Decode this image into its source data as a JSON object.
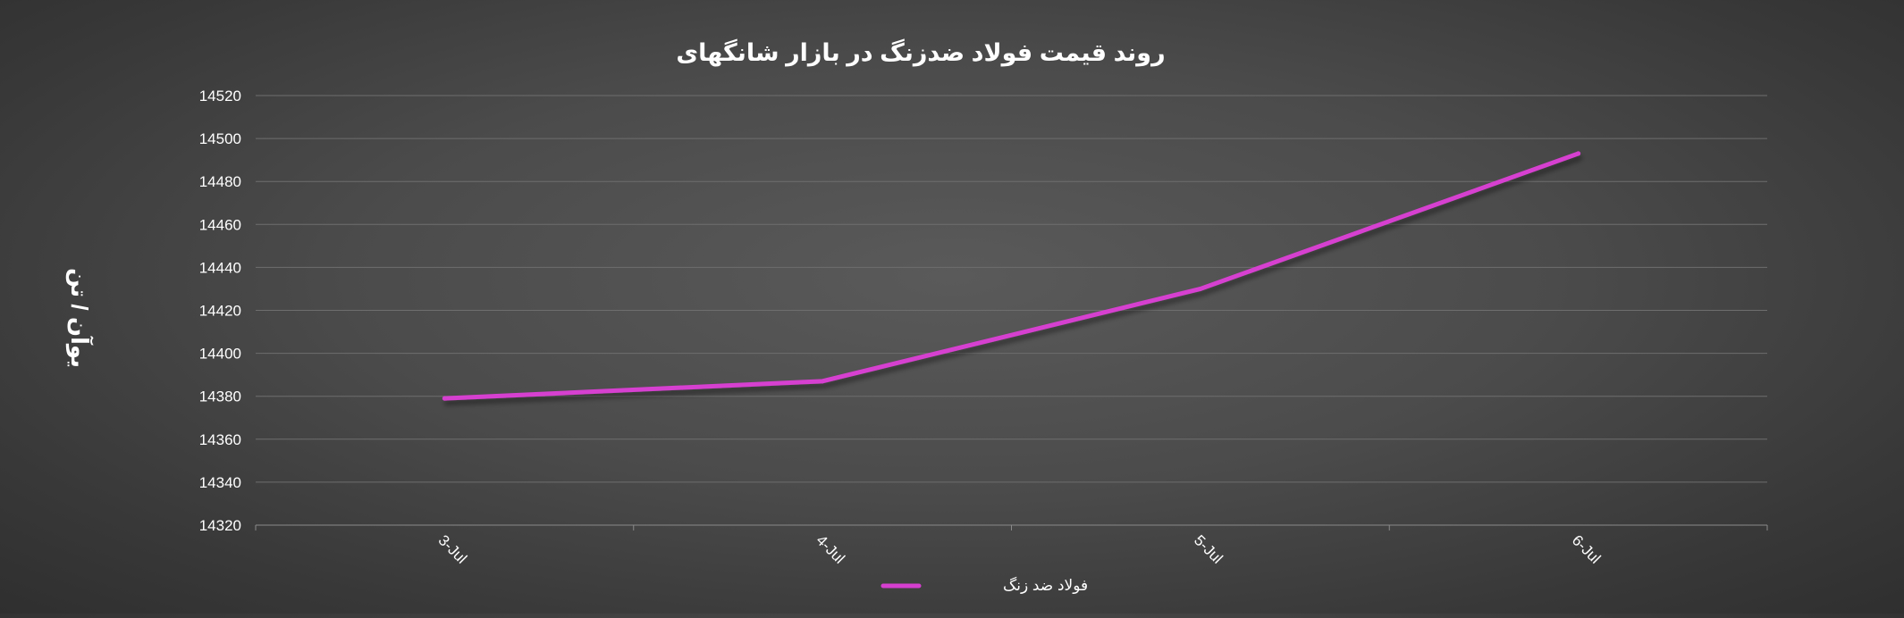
{
  "chart_data": {
    "type": "line",
    "title": "روند قیمت فولاد ضدزنگ در بازار شانگهای",
    "ylabel": "یوآن / تن",
    "xlabel": "",
    "categories": [
      "3-Jul",
      "4-Jul",
      "5-Jul",
      "6-Jul"
    ],
    "series": [
      {
        "name": "فولاد ضد زنگ",
        "color": "#d63fd0",
        "values": [
          14379,
          14387,
          14430,
          14493
        ]
      }
    ],
    "ylim": [
      14320,
      14520
    ],
    "yticks": [
      14320,
      14340,
      14360,
      14380,
      14400,
      14420,
      14440,
      14460,
      14480,
      14500,
      14520
    ],
    "grid": true,
    "legend_position": "bottom-center"
  }
}
